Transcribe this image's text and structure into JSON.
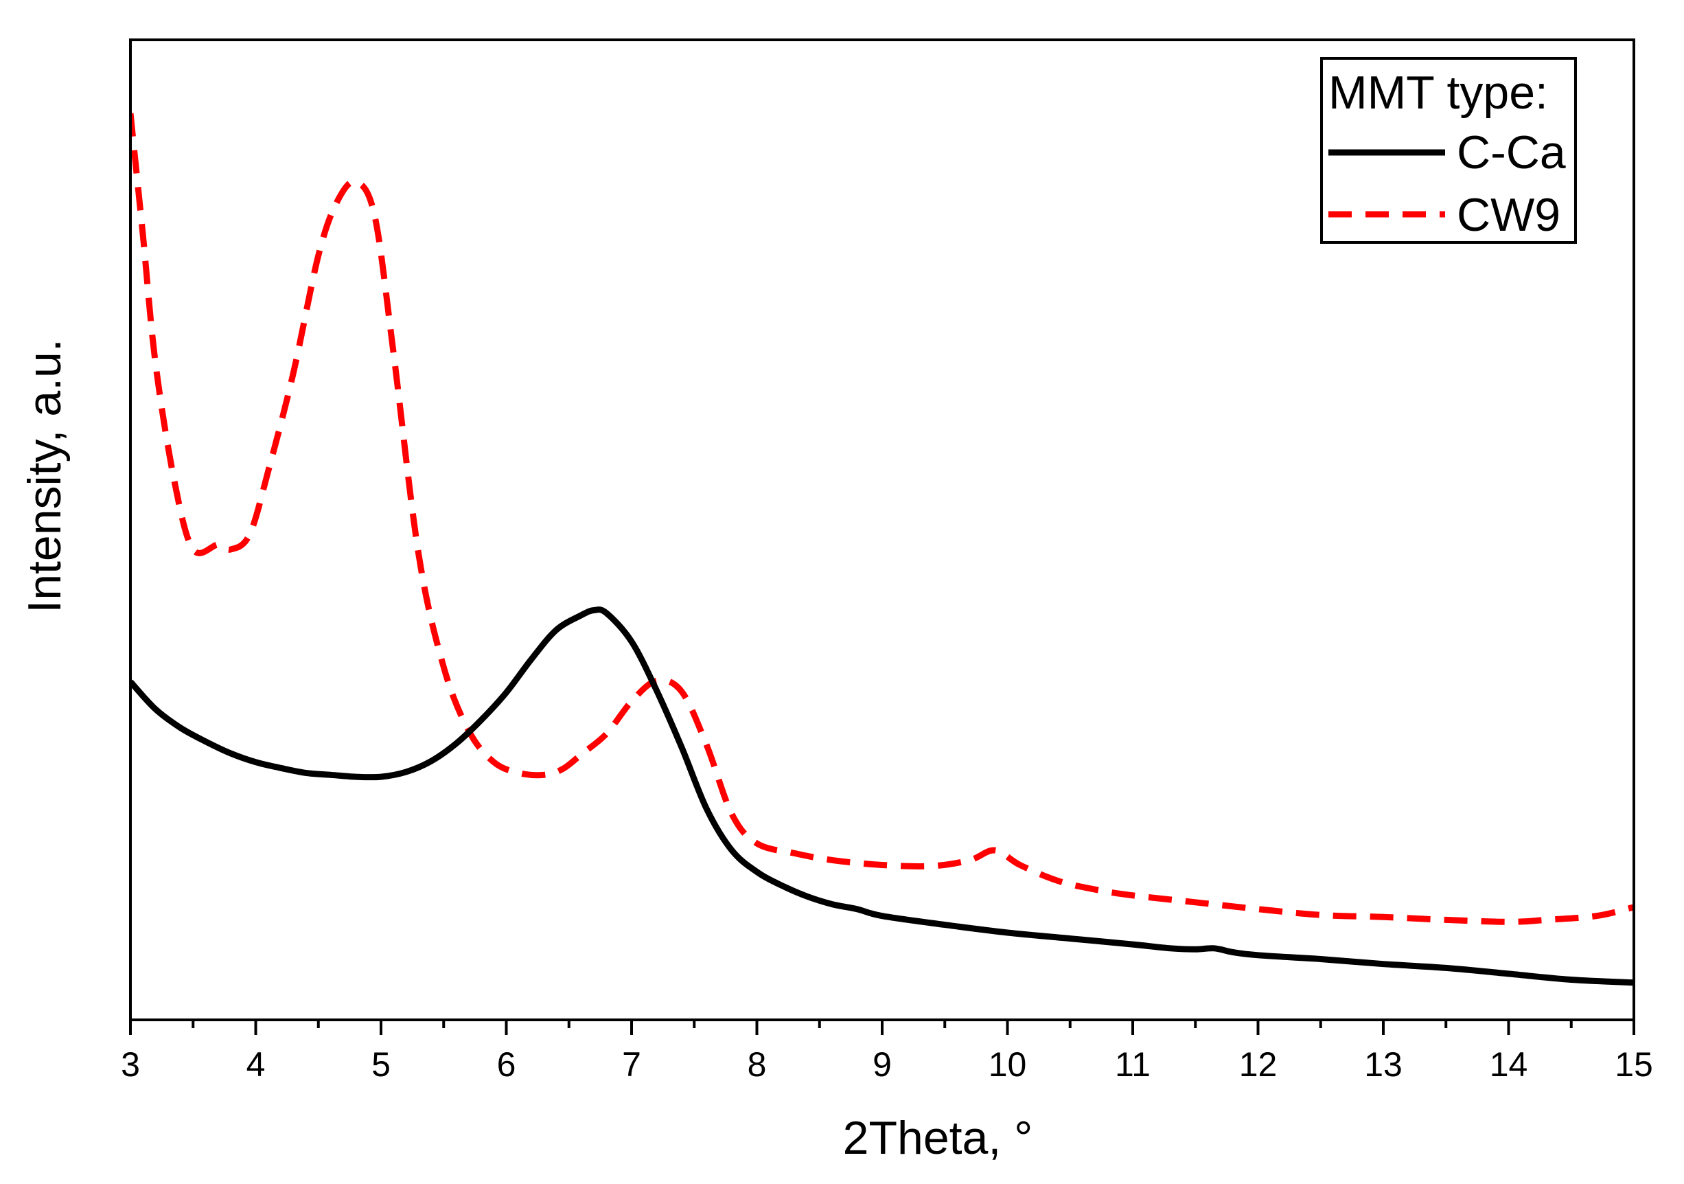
{
  "chart_data": {
    "type": "line",
    "title": "",
    "xlabel": "2Theta, °",
    "ylabel": "Intensity, a.u.",
    "xlim": [
      3,
      15
    ],
    "ylim": [
      0,
      100
    ],
    "grid": false,
    "x_ticks": [
      3,
      4,
      5,
      6,
      7,
      8,
      9,
      10,
      11,
      12,
      13,
      14,
      15
    ],
    "x_tick_labels": [
      "3",
      "4",
      "5",
      "6",
      "7",
      "8",
      "9",
      "10",
      "11",
      "12",
      "13",
      "14",
      "15"
    ],
    "legend": {
      "placement": "top-right",
      "title": "MMT type:",
      "entries": [
        "C-Ca",
        "CW9"
      ]
    },
    "series": [
      {
        "name": "C-Ca",
        "color": "#000000",
        "style": "solid",
        "x": [
          3.0,
          3.2,
          3.4,
          3.6,
          3.8,
          4.0,
          4.2,
          4.4,
          4.6,
          4.8,
          5.0,
          5.2,
          5.4,
          5.6,
          5.8,
          6.0,
          6.2,
          6.4,
          6.6,
          6.7,
          6.8,
          7.0,
          7.2,
          7.4,
          7.6,
          7.8,
          8.0,
          8.2,
          8.4,
          8.6,
          8.8,
          9.0,
          9.5,
          10.0,
          10.5,
          11.0,
          11.3,
          11.5,
          11.65,
          11.8,
          12.0,
          12.5,
          13.0,
          13.5,
          14.0,
          14.5,
          15.0
        ],
        "y": [
          34.5,
          31.7,
          29.8,
          28.4,
          27.2,
          26.3,
          25.7,
          25.2,
          25.0,
          24.8,
          24.8,
          25.3,
          26.4,
          28.2,
          30.6,
          33.4,
          36.8,
          39.8,
          41.3,
          41.8,
          41.5,
          38.6,
          33.6,
          27.8,
          21.5,
          17.3,
          15.1,
          13.7,
          12.6,
          11.8,
          11.3,
          10.6,
          9.7,
          8.9,
          8.3,
          7.7,
          7.3,
          7.2,
          7.3,
          6.9,
          6.6,
          6.2,
          5.7,
          5.3,
          4.7,
          4.1,
          3.8
        ]
      },
      {
        "name": "CW9",
        "color": "#ff0000",
        "style": "dashed",
        "x": [
          3.0,
          3.1,
          3.2,
          3.35,
          3.5,
          3.7,
          3.8,
          3.95,
          4.1,
          4.3,
          4.5,
          4.65,
          4.8,
          4.95,
          5.1,
          5.3,
          5.5,
          5.7,
          5.9,
          6.1,
          6.3,
          6.45,
          6.6,
          6.8,
          7.0,
          7.2,
          7.4,
          7.6,
          7.8,
          8.0,
          8.3,
          8.6,
          9.0,
          9.4,
          9.7,
          9.9,
          10.1,
          10.4,
          10.7,
          11.0,
          11.5,
          12.0,
          12.5,
          13.0,
          13.5,
          14.0,
          14.3,
          14.7,
          15.0
        ],
        "y": [
          92.5,
          80.0,
          67.0,
          55.0,
          48.0,
          48.5,
          48.0,
          49.5,
          56.0,
          66.0,
          78.0,
          83.5,
          85.5,
          82.0,
          68.0,
          47.5,
          36.0,
          29.5,
          26.3,
          25.2,
          25.0,
          25.6,
          27.1,
          29.2,
          32.5,
          34.6,
          33.5,
          28.0,
          21.0,
          18.0,
          17.0,
          16.3,
          15.8,
          15.7,
          16.3,
          17.3,
          15.8,
          14.2,
          13.3,
          12.7,
          12.0,
          11.3,
          10.7,
          10.5,
          10.2,
          10.0,
          10.2,
          10.6,
          11.5
        ]
      }
    ]
  }
}
